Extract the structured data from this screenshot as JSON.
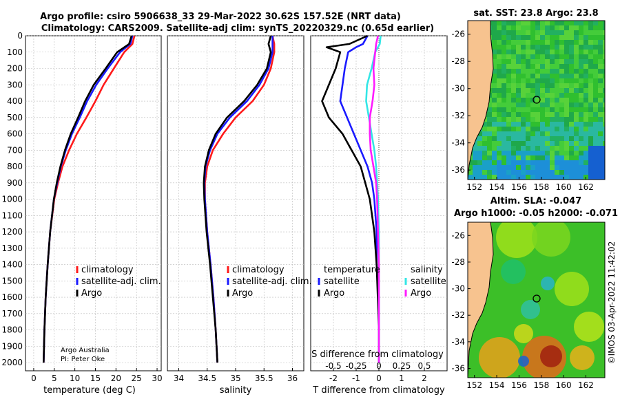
{
  "title": {
    "line1": "Argo profile: csiro 5906638_33 29-Mar-2022 30.62S 157.52E (NRT data)",
    "line2": "Climatology: CARS2009. Satellite-adj clim: synTS_20220329.nc (0.65d earlier)"
  },
  "colors": {
    "climatology": "#ff1a1a",
    "satadj": "#1a1aff",
    "argo": "#000000",
    "sat_salinity": "#33e6e6",
    "argo_salinity": "#ff1aff"
  },
  "credits": {
    "line1": "Argo Australia",
    "line2": "PI: Peter Oke"
  },
  "imos_stamp": "©IMOS 03-Apr-2022 11:42:02",
  "chart_data": [
    {
      "type": "line",
      "xlabel": "temperature (deg C)",
      "ylabel": "",
      "xlim": [
        -2,
        31
      ],
      "ylim": [
        2050,
        0
      ],
      "xticks": [
        "0",
        "5",
        "10",
        "15",
        "20",
        "25",
        "30"
      ],
      "yticks": [
        "0",
        "100",
        "200",
        "300",
        "400",
        "500",
        "600",
        "700",
        "800",
        "900",
        "1000",
        "1100",
        "1200",
        "1300",
        "1400",
        "1500",
        "1600",
        "1700",
        "1800",
        "1900",
        "2000"
      ],
      "legend": [
        "climatology",
        "satellite-adj. clim.",
        "Argo"
      ],
      "series": [
        {
          "name": "climatology",
          "depth": [
            0,
            50,
            100,
            200,
            300,
            400,
            500,
            600,
            700,
            800,
            900,
            1000,
            1200,
            1400,
            1600,
            1800,
            2000
          ],
          "values": [
            24.5,
            24.0,
            22.0,
            19.5,
            17.0,
            15.0,
            12.8,
            10.5,
            8.6,
            7.0,
            5.9,
            5.0,
            4.0,
            3.4,
            2.9,
            2.6,
            2.4
          ]
        },
        {
          "name": "satellite-adj. clim.",
          "depth": [
            0,
            50,
            100,
            200,
            300,
            400,
            500,
            600,
            700,
            800,
            900,
            1000,
            1200,
            1400,
            1600,
            1800,
            2000
          ],
          "values": [
            24.0,
            23.5,
            21.0,
            18.0,
            15.2,
            13.0,
            11.2,
            9.3,
            7.8,
            6.6,
            5.7,
            4.9,
            4.0,
            3.4,
            2.9,
            2.6,
            2.4
          ]
        },
        {
          "name": "Argo",
          "depth": [
            0,
            50,
            100,
            200,
            300,
            400,
            500,
            600,
            700,
            800,
            900,
            1000,
            1200,
            1400,
            1600,
            1800,
            2000
          ],
          "values": [
            23.8,
            23.2,
            20.3,
            17.5,
            14.6,
            12.5,
            10.8,
            9.0,
            7.6,
            6.5,
            5.6,
            4.9,
            4.0,
            3.4,
            2.9,
            2.6,
            2.4
          ]
        }
      ]
    },
    {
      "type": "line",
      "xlabel": "salinity",
      "ylabel": "",
      "xlim": [
        33.8,
        36.2
      ],
      "ylim": [
        2050,
        0
      ],
      "xticks": [
        "34",
        "34.5",
        "35",
        "35.5",
        "36"
      ],
      "legend": [
        "climatology",
        "satellite-adj. clim.",
        "Argo"
      ],
      "series": [
        {
          "name": "climatology",
          "depth": [
            0,
            50,
            100,
            200,
            300,
            400,
            500,
            600,
            700,
            800,
            900,
            1000,
            1200,
            1400,
            1600,
            1800,
            2000
          ],
          "values": [
            35.65,
            35.68,
            35.68,
            35.62,
            35.5,
            35.3,
            35.0,
            34.78,
            34.6,
            34.5,
            34.46,
            34.46,
            34.5,
            34.56,
            34.61,
            34.65,
            34.68
          ]
        },
        {
          "name": "satellite-adj. clim.",
          "depth": [
            0,
            50,
            100,
            200,
            300,
            400,
            500,
            600,
            700,
            800,
            900,
            1000,
            1200,
            1400,
            1600,
            1800,
            2000
          ],
          "values": [
            35.65,
            35.65,
            35.65,
            35.58,
            35.42,
            35.2,
            34.9,
            34.68,
            34.55,
            34.47,
            34.45,
            34.46,
            34.5,
            34.56,
            34.61,
            34.65,
            34.68
          ]
        },
        {
          "name": "Argo",
          "depth": [
            0,
            50,
            100,
            200,
            300,
            400,
            500,
            600,
            700,
            800,
            900,
            1000,
            1200,
            1400,
            1600,
            1800,
            2000
          ],
          "values": [
            35.62,
            35.58,
            35.62,
            35.55,
            35.38,
            35.15,
            34.85,
            34.65,
            34.53,
            34.46,
            34.44,
            34.45,
            34.49,
            34.55,
            34.6,
            34.65,
            34.68
          ]
        }
      ]
    },
    {
      "type": "line",
      "xlabel": "T difference from climatology",
      "xlabel_top": "S difference from climatology",
      "ylabel": "",
      "xlim": [
        -3,
        3
      ],
      "ylim": [
        2050,
        0
      ],
      "xticks": [
        "-2",
        "-1",
        "0",
        "1",
        "2"
      ],
      "xticks_top": [
        "-0.5",
        "-0.25",
        "0",
        "0.25",
        "0.5"
      ],
      "legend_left": {
        "title": "temperature",
        "items": [
          "satellite",
          "Argo"
        ]
      },
      "legend_right": {
        "title": "salinity",
        "items": [
          "satellite",
          "Argo"
        ]
      },
      "series": [
        {
          "name": "temperature satellite",
          "depth": [
            0,
            50,
            70,
            100,
            200,
            300,
            400,
            500,
            600,
            700,
            800,
            900,
            1000,
            1200,
            1400,
            1600,
            1800,
            2000
          ],
          "values": [
            -0.5,
            -0.7,
            -1.0,
            -1.35,
            -1.5,
            -1.6,
            -1.7,
            -1.4,
            -1.1,
            -0.8,
            -0.5,
            -0.3,
            -0.2,
            -0.1,
            -0.1,
            0,
            0,
            0
          ]
        },
        {
          "name": "temperature Argo",
          "depth": [
            0,
            50,
            70,
            100,
            200,
            300,
            400,
            500,
            600,
            700,
            800,
            900,
            1000,
            1200,
            1400,
            1600,
            1800,
            2000
          ],
          "values": [
            -0.5,
            -1.3,
            -2.3,
            -1.7,
            -1.9,
            -2.2,
            -2.5,
            -2.2,
            -1.6,
            -1.2,
            -0.8,
            -0.6,
            -0.4,
            -0.2,
            -0.1,
            -0.05,
            0,
            0
          ]
        },
        {
          "name": "salinity satellite",
          "depth": [
            0,
            50,
            100,
            200,
            300,
            400,
            500,
            600,
            700,
            800,
            900,
            1000,
            1200,
            1400,
            1600,
            1800,
            2000
          ],
          "values": [
            0.02,
            0.01,
            -0.04,
            -0.08,
            -0.13,
            -0.14,
            -0.11,
            -0.08,
            -0.05,
            -0.03,
            -0.02,
            -0.01,
            0,
            0,
            0,
            0,
            0
          ]
        },
        {
          "name": "salinity Argo",
          "depth": [
            0,
            50,
            100,
            200,
            300,
            400,
            500,
            600,
            700,
            800,
            900,
            1000,
            1200,
            1400,
            1600,
            1800,
            2000
          ],
          "values": [
            -0.01,
            -0.03,
            -0.04,
            -0.06,
            -0.05,
            -0.07,
            -0.1,
            -0.1,
            -0.09,
            -0.06,
            -0.03,
            -0.02,
            -0.01,
            0,
            0,
            0,
            0
          ]
        }
      ]
    },
    {
      "type": "heatmap",
      "title": "sat. SST: 23.8 Argo: 23.8",
      "xticks": [
        "152",
        "154",
        "156",
        "158",
        "160",
        "162"
      ],
      "yticks": [
        "-26",
        "-28",
        "-30",
        "-32",
        "-34",
        "-36"
      ],
      "marker": {
        "lon": 157.52,
        "lat": -30.62
      }
    },
    {
      "type": "heatmap",
      "title_line1": "Altim. SLA: -0.047",
      "title_line2": "Argo h1000: -0.05 h2000: -0.071",
      "xticks": [
        "152",
        "154",
        "156",
        "158",
        "160",
        "162"
      ],
      "yticks": [
        "-26",
        "-28",
        "-30",
        "-32",
        "-34",
        "-36"
      ],
      "marker": {
        "lon": 157.52,
        "lat": -30.62
      }
    }
  ]
}
